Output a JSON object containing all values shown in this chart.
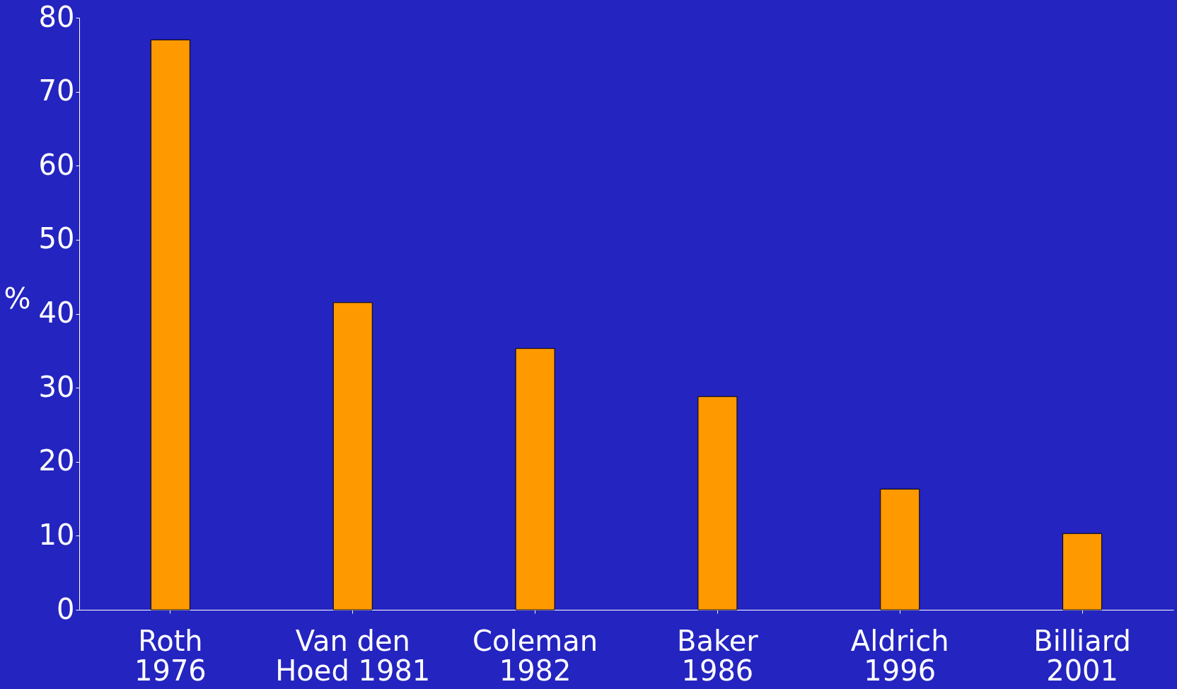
{
  "chart_data": {
    "type": "bar",
    "ylabel": "%",
    "categories": [
      "Roth\n1976",
      "Van den\nHoed 1981",
      "Coleman\n1982",
      "Baker\n1986",
      "Aldrich\n1996",
      "Billiard\n2001"
    ],
    "values": [
      77,
      41.5,
      35.3,
      28.8,
      16.3,
      10.3
    ],
    "color": "#ff9900",
    "ylim": [
      0,
      80
    ],
    "yticks": [
      0,
      10,
      20,
      30,
      40,
      50,
      60,
      70,
      80
    ],
    "grid": false
  }
}
